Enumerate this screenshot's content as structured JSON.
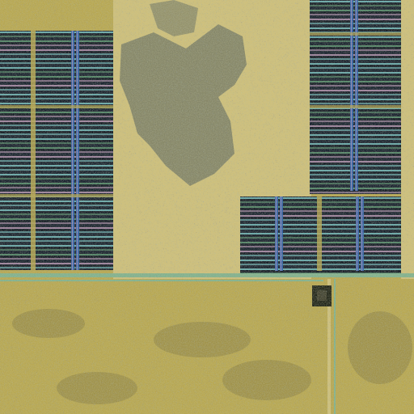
{
  "image": {
    "subject": "die-micrograph",
    "colors": {
      "substrate_gold": "#b8a74f",
      "substrate_light": "#cfc07a",
      "substrate_dark": "#6f6a3c",
      "shadow_region": "#6b7261",
      "array_dark": "#0f1a2a",
      "array_stripe_blue": "#2b5fb0",
      "array_stripe_cyan": "#7fd7d8",
      "array_stripe_green": "#5fa37a",
      "array_stripe_pink": "#c9a2c8",
      "bus_line_green": "#7fb28e",
      "pad_dark": "#1b1f14"
    }
  }
}
